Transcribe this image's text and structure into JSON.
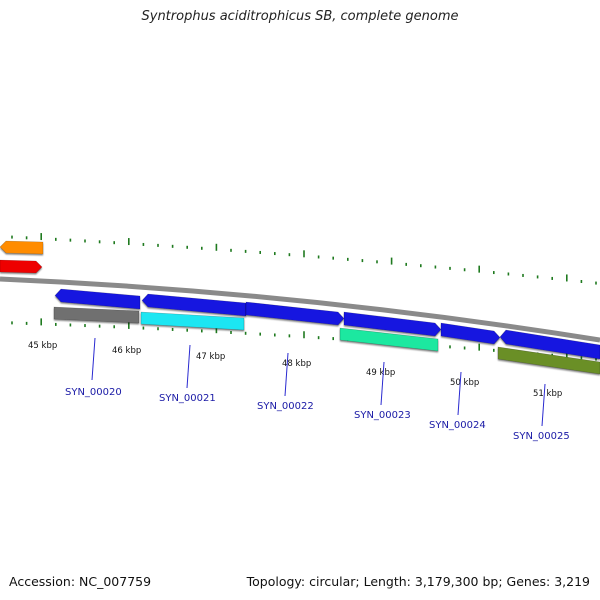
{
  "title": "Syntrophus aciditrophicus SB, complete genome",
  "footer": {
    "accession": "Accession: NC_007759",
    "summary": "Topology: circular; Length: 3,179,300 bp; Genes: 3,219"
  },
  "colors": {
    "backbone": "#8a8a8a",
    "ticks": "#1f7a1f",
    "kbp_text": "#111111",
    "gene_label": "#1a1aa6",
    "label_line": "#2a2ad0"
  },
  "kbp_labels": [
    "45 kbp",
    "46 kbp",
    "47 kbp",
    "48 kbp",
    "49 kbp",
    "50 kbp",
    "51 kbp"
  ],
  "genes": [
    {
      "label": "SYN_00020",
      "color": "#6f6f6f",
      "strand": "reverse"
    },
    {
      "label": "SYN_00021",
      "color": "#1fe6f2",
      "strand": "reverse"
    },
    {
      "label": "SYN_00022",
      "color": "#1414e0",
      "strand": "forward"
    },
    {
      "label": "SYN_00023",
      "color": "#1fe8a0",
      "strand": "reverse"
    },
    {
      "label": "SYN_00024",
      "color": "#1414e0",
      "strand": "forward"
    },
    {
      "label": "SYN_00025",
      "color": "#6b8f28",
      "strand": "reverse"
    }
  ],
  "unlabeled_features": [
    {
      "color": "#ff8c00",
      "strand": "reverse"
    },
    {
      "color": "#ee0000",
      "strand": "forward"
    },
    {
      "color": "#1414e0",
      "strand": "forward"
    },
    {
      "color": "#1414e0",
      "strand": "forward"
    },
    {
      "color": "#1414e0",
      "strand": "forward"
    },
    {
      "color": "#1414e0",
      "strand": "forward"
    },
    {
      "color": "#1414e0",
      "strand": "forward"
    }
  ]
}
